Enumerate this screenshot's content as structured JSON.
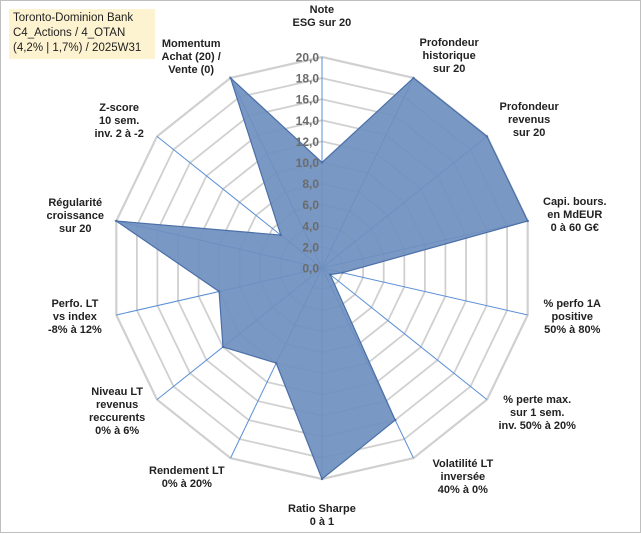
{
  "header": {
    "lines": [
      "Toronto-Dominion Bank",
      "C4_Actions / 4_OTAN",
      "(4,2% | 1,7%) / 2025W31"
    ]
  },
  "chart_data": {
    "type": "radar",
    "r_min": 0,
    "r_max": 20,
    "tick_labels": [
      "0,0",
      "2,0",
      "4,0",
      "6,0",
      "8,0",
      "10,0",
      "12,0",
      "14,0",
      "16,0",
      "18,0",
      "20,0"
    ],
    "grid": true,
    "colors": {
      "fill": "#6f8fbf",
      "stroke": "#4a6fa8",
      "grid": "#d0d0d0",
      "spoke": "#5b8fd6"
    },
    "axes": [
      {
        "lines": [
          "Note",
          "ESG sur 20"
        ],
        "value": 10.0
      },
      {
        "lines": [
          "Profondeur",
          "historique",
          "sur 20"
        ],
        "value": 20.0
      },
      {
        "lines": [
          "Profondeur",
          "revenus",
          "sur 20"
        ],
        "value": 20.0
      },
      {
        "lines": [
          "Capi. bours.",
          "en MdEUR",
          "0 à 60 G€"
        ],
        "value": 20.0
      },
      {
        "lines": [
          "% perfo 1A",
          "positive",
          "50% à 80%"
        ],
        "value": 2.0
      },
      {
        "lines": [
          "% perte max.",
          "sur 1 sem.",
          "inv. 50% à 20%"
        ],
        "value": 1.0
      },
      {
        "lines": [
          "Volatilité LT",
          "inversée",
          "40% à 0%"
        ],
        "value": 16.0
      },
      {
        "lines": [
          "Ratio Sharpe",
          "0 à 1"
        ],
        "value": 20.0
      },
      {
        "lines": [
          "Rendement LT",
          "0% à 20%"
        ],
        "value": 10.0
      },
      {
        "lines": [
          "Niveau LT",
          "revenus",
          "reccurents",
          "0% à 6%"
        ],
        "value": 12.0
      },
      {
        "lines": [
          "Perfo. LT",
          "vs index",
          "-8% à 12%"
        ],
        "value": 10.0
      },
      {
        "lines": [
          "Régularité",
          "croissance",
          "sur 20"
        ],
        "value": 20.0
      },
      {
        "lines": [
          "Z-score",
          "10 sem.",
          "inv. 2 à -2"
        ],
        "value": 5.0
      },
      {
        "lines": [
          "Momentum",
          "Achat (20) /",
          "Vente (0)"
        ],
        "value": 20.0
      }
    ]
  }
}
